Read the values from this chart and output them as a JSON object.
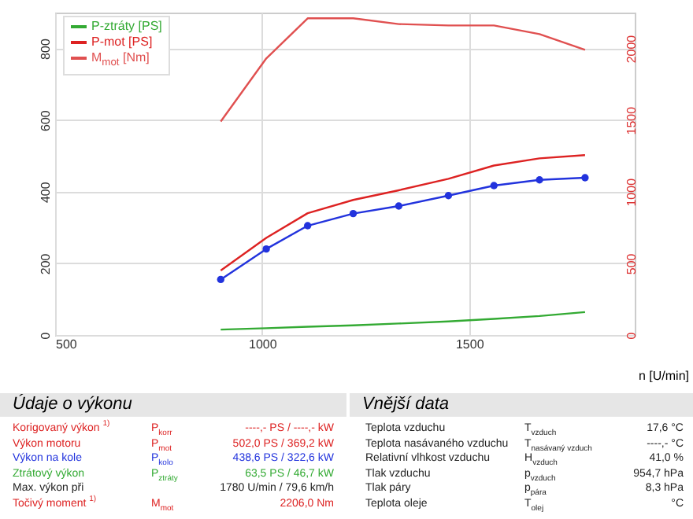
{
  "chart_data": {
    "type": "line",
    "xlabel": "n [U/min]",
    "x": [
      900,
      1010,
      1110,
      1220,
      1330,
      1450,
      1560,
      1670,
      1780
    ],
    "series": [
      {
        "color": "#2233dd",
        "marker": "circle",
        "values": [
          155,
          240,
          305,
          339,
          360,
          389,
          417,
          433,
          439
        ]
      },
      {
        "name": "P-ztráty [PS]",
        "color": "#33aa33",
        "values": [
          15,
          19,
          23,
          27,
          32,
          38,
          45,
          53,
          64
        ]
      },
      {
        "name": "P-mot [PS]",
        "color": "#dd2222",
        "values": [
          180,
          271,
          340,
          377,
          404,
          436,
          473,
          493,
          502
        ]
      },
      {
        "name": "M$_{mot}$ [Nm]",
        "color": "#e05050",
        "axis": "y2",
        "values": [
          1490,
          1930,
          2210,
          2210,
          2170,
          2160,
          2160,
          2100,
          1990
        ]
      }
    ],
    "xlim": [
      500,
      1900
    ],
    "xticks": [
      500,
      1000,
      1500
    ],
    "ylim": [
      0,
      900
    ],
    "yticks": [
      0,
      200,
      400,
      600,
      800
    ],
    "y2lim": [
      0,
      2250
    ],
    "y2ticks": [
      0,
      500,
      1000,
      1500,
      2000
    ],
    "grid": true,
    "legend": "top left",
    "annotations": [
      "Údaje o výkonu",
      "Vnější data",
      "Korigovaný výkon $^{1)}$",
      "P$_{korr}$",
      "----,- PS / ----,- kW",
      "Výkon motoru",
      "P$_{mot}$",
      "502,0 PS / 369,2 kW",
      "Výkon na kole",
      "P$_{kolo}$",
      "438,6 PS / 322,6 kW",
      "Ztrátový výkon",
      "P$_{ztráty}$",
      "63,5 PS / 46,7 kW",
      "Max. výkon při",
      null,
      "1780 U/min / 79,6 km/h",
      "Točivý moment $^{1)}$",
      "M$_{mot}$",
      "2206,0 Nm",
      "Teplota vzduchu",
      "T$_{vzduch}$",
      "17,6 °C",
      "Teplota nasávaného vzduchu",
      "T$_{nasávaný vzduch}$",
      "----,- °C",
      "Relativní vlhkost vzduchu",
      "H$_{vzduch}$",
      "41,0 %",
      "Tlak vzduchu",
      "p$_{vzduch}$",
      "954,7 hPa",
      "Tlak páry",
      "p$_{pára}$",
      "8,3 hPa",
      "Teplota oleje",
      "T$_{olej}$",
      "°C"
    ]
  }
}
